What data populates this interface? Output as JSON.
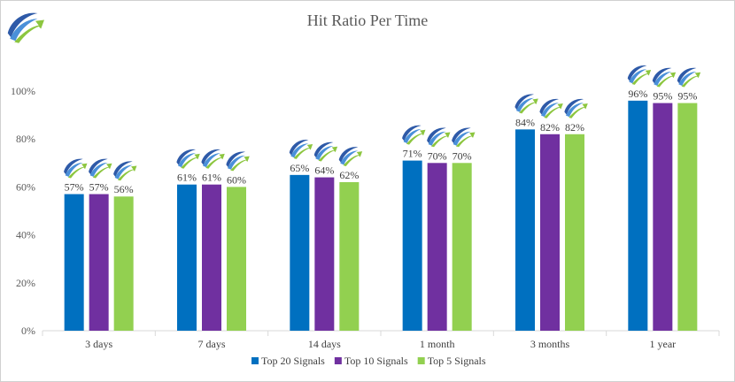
{
  "chart_data": {
    "type": "bar",
    "title": "Hit  Ratio Per Time",
    "xlabel": "",
    "ylabel": "",
    "categories": [
      "3 days",
      "7 days",
      "14 days",
      "1 month",
      "3 months",
      "1 year"
    ],
    "ylim": [
      0,
      100
    ],
    "yticks": [
      0,
      20,
      40,
      60,
      80,
      100
    ],
    "ytick_labels": [
      "0%",
      "20%",
      "40%",
      "60%",
      "80%",
      "100%"
    ],
    "grid": false,
    "legend_position": "bottom",
    "series": [
      {
        "name": "Top 20 Signals",
        "color": "#0070C0",
        "values": [
          57,
          61,
          65,
          71,
          84,
          96
        ],
        "labels": [
          "57%",
          "61%",
          "65%",
          "71%",
          "84%",
          "96%"
        ]
      },
      {
        "name": "Top 10 Signals",
        "color": "#7030A0",
        "values": [
          57,
          61,
          64,
          70,
          82,
          95
        ],
        "labels": [
          "57%",
          "61%",
          "64%",
          "70%",
          "82%",
          "95%"
        ]
      },
      {
        "name": "Top 5 Signals",
        "color": "#92D050",
        "values": [
          56,
          60,
          62,
          70,
          82,
          95
        ],
        "labels": [
          "56%",
          "60%",
          "62%",
          "70%",
          "82%",
          "95%"
        ]
      }
    ],
    "logo_icon": "growth-arrow-logo-icon"
  }
}
